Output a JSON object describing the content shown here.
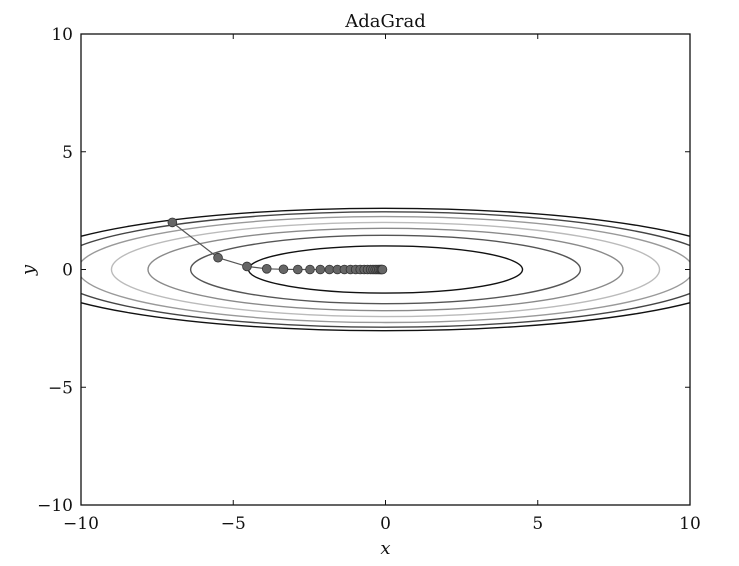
{
  "chart_data": {
    "type": "scatter",
    "title": "AdaGrad",
    "xlabel": "x",
    "ylabel": "y",
    "xlim": [
      -10,
      10
    ],
    "ylim": [
      -10,
      10
    ],
    "x_ticks": [
      -10,
      -5,
      0,
      5,
      10
    ],
    "y_ticks": [
      -10,
      -5,
      0,
      5,
      10
    ],
    "x_tick_labels": [
      "−10",
      "−5",
      "0",
      "5",
      "10"
    ],
    "y_tick_labels": [
      "−10",
      "−5",
      "0",
      "5",
      "10"
    ],
    "grid": false,
    "contours": [
      {
        "a": 4.5,
        "b": 1.0,
        "color": "#111111"
      },
      {
        "a": 6.4,
        "b": 1.45,
        "color": "#555555"
      },
      {
        "a": 7.8,
        "b": 1.75,
        "color": "#8a8a8a"
      },
      {
        "a": 9.0,
        "b": 2.0,
        "color": "#bbbbbb"
      },
      {
        "a": 10.1,
        "b": 2.25,
        "color": "#999999"
      },
      {
        "a": 11.0,
        "b": 2.45,
        "color": "#444444"
      },
      {
        "a": 11.9,
        "b": 2.6,
        "color": "#111111"
      }
    ],
    "path": {
      "color": "#555555",
      "marker_color": "#666666",
      "x": [
        -7.0,
        -5.5,
        -4.55,
        -3.9,
        -3.35,
        -2.88,
        -2.48,
        -2.14,
        -1.84,
        -1.58,
        -1.35,
        -1.15,
        -0.98,
        -0.83,
        -0.7,
        -0.59,
        -0.49,
        -0.41,
        -0.34,
        -0.28,
        -0.22,
        -0.17,
        -0.13,
        -0.1
      ],
      "y": [
        2.0,
        0.5,
        0.13,
        0.03,
        0.01,
        0.0,
        0.0,
        0.0,
        0.0,
        0.0,
        0.0,
        0.0,
        0.0,
        0.0,
        0.0,
        0.0,
        0.0,
        0.0,
        0.0,
        0.0,
        0.0,
        0.0,
        0.0,
        0.0
      ]
    }
  }
}
